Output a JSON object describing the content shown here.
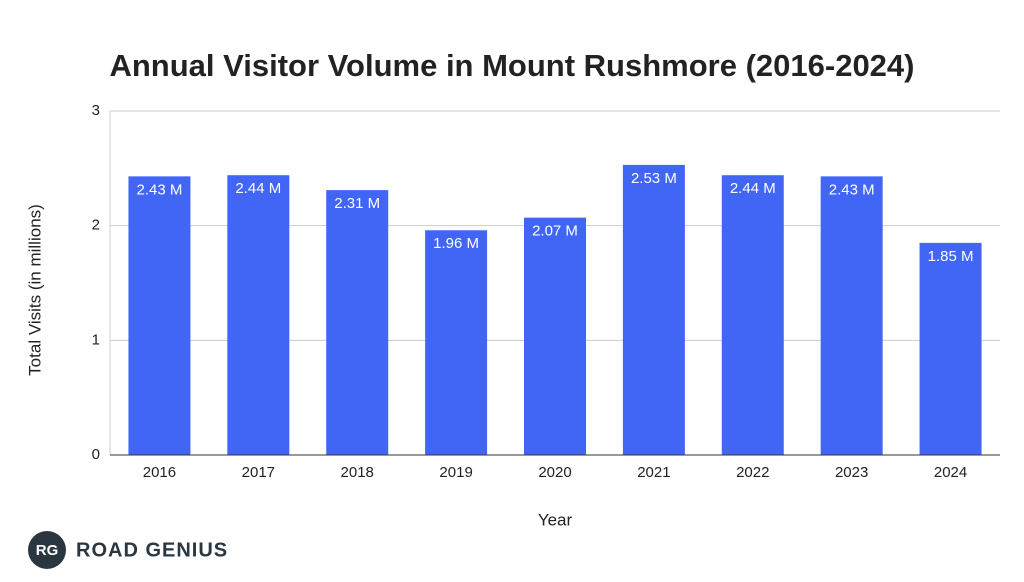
{
  "chart_data": {
    "type": "bar",
    "title": "Annual Visitor Volume in Mount Rushmore (2016-2024)",
    "x_label": "Year",
    "y_label": "Total Visits (in millions)",
    "categories": [
      "2016",
      "2017",
      "2018",
      "2019",
      "2020",
      "2021",
      "2022",
      "2023",
      "2024"
    ],
    "values": [
      2.43,
      2.44,
      2.31,
      1.96,
      2.07,
      2.53,
      2.44,
      2.43,
      1.85
    ],
    "value_labels": [
      "2.43 M",
      "2.44 M",
      "2.31 M",
      "1.96 M",
      "2.07 M",
      "2.53 M",
      "2.44 M",
      "2.43 M",
      "1.85 M"
    ],
    "color": "#4166f5",
    "ylim": [
      0,
      3
    ],
    "yticks": [
      0,
      1,
      2,
      3
    ],
    "grid": true
  },
  "logo": {
    "badge": "RG",
    "name": "ROAD GENIUS"
  }
}
